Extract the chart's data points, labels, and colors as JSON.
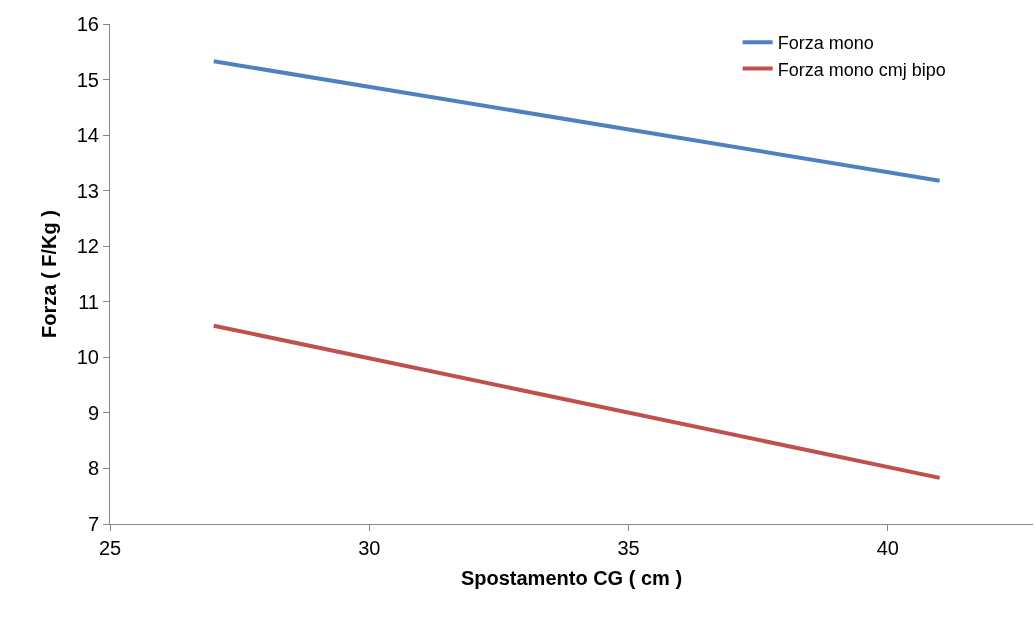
{
  "chart_data": {
    "type": "line",
    "xlabel": "Spostamento CG ( cm )",
    "ylabel": "Forza ( F/Kg )",
    "x": [
      27,
      41
    ],
    "series": [
      {
        "name": "Forza mono",
        "color": "#4f81bd",
        "values": [
          15.33,
          13.18
        ]
      },
      {
        "name": "Forza mono cmj bipo",
        "color": "#c0504d",
        "values": [
          10.57,
          7.83
        ]
      }
    ],
    "xlim": [
      25,
      42.8
    ],
    "xticks": [
      25,
      30,
      35,
      40
    ],
    "ylim": [
      7,
      16
    ],
    "yticks": [
      7,
      8,
      9,
      10,
      11,
      12,
      13,
      14,
      15,
      16
    ],
    "grid": false,
    "legend": "top right",
    "marker": "none",
    "line_style": "solid"
  }
}
